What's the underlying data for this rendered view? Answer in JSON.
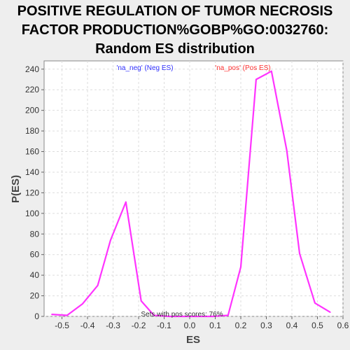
{
  "chart_data": {
    "type": "line",
    "title_lines": [
      "POSITIVE REGULATION OF TUMOR NECROSIS",
      "FACTOR PRODUCTION%GOBP%GO:0032760:",
      "Random ES distribution"
    ],
    "xlabel": "ES",
    "ylabel": "P(ES)",
    "xlim": [
      -0.57,
      0.6
    ],
    "ylim": [
      0,
      248
    ],
    "x_ticks": [
      -0.5,
      -0.4,
      -0.3,
      -0.2,
      -0.1,
      0.0,
      0.1,
      0.2,
      0.3,
      0.4,
      0.5,
      0.6
    ],
    "x_tick_labels": [
      "-0.5",
      "-0.4",
      "-0.3",
      "-0.2",
      "-0.1",
      "0.0",
      "0.1",
      "0.2",
      "0.3",
      "0.4",
      "0.5",
      "0.6"
    ],
    "y_ticks": [
      0,
      20,
      40,
      60,
      80,
      100,
      120,
      140,
      160,
      180,
      200,
      220,
      240
    ],
    "y_tick_labels": [
      "0",
      "20",
      "40",
      "60",
      "80",
      "100",
      "120",
      "140",
      "160",
      "180",
      "200",
      "220",
      "240"
    ],
    "grid": true,
    "legend": {
      "placement": "top",
      "entries": [
        {
          "label": "'na_neg' (Neg ES)",
          "color": "#3333ff"
        },
        {
          "label": "'na_pos' (Pos ES)",
          "color": "#ff3333"
        }
      ]
    },
    "annotation": "Sets with pos scores: 76%",
    "series": [
      {
        "color": "#ff33ff",
        "x": [
          -0.54,
          -0.48,
          -0.42,
          -0.36,
          -0.31,
          -0.25,
          -0.19,
          -0.14,
          -0.08,
          -0.02,
          0.03,
          0.09,
          0.15,
          0.2,
          0.26,
          0.32,
          0.38,
          0.43,
          0.49,
          0.55
        ],
        "y": [
          2,
          1,
          12,
          30,
          74,
          111,
          15,
          1,
          0,
          0,
          0,
          0,
          1,
          48,
          230,
          238,
          161,
          61,
          13,
          4
        ]
      }
    ],
    "colors": {
      "background": "#eeeeee",
      "plot_background": "#ffffff",
      "grid": "#dddddd",
      "line": "#ff33ff"
    }
  }
}
